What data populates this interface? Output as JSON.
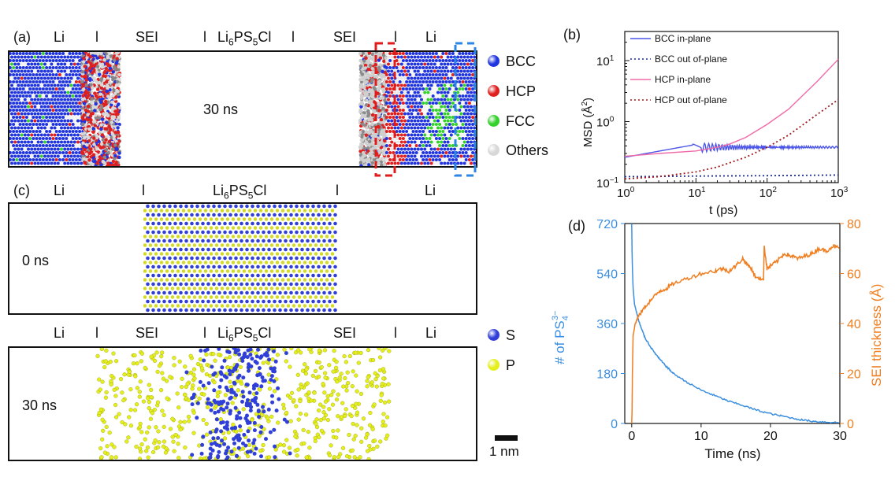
{
  "colors": {
    "bcc": "#2035e0",
    "hcp": "#e01f1f",
    "fcc": "#34d02b",
    "others": "#d8d8d8",
    "s_atom": "#2f3fd8",
    "p_atom": "#e4ef1c",
    "sei_line": "#f07d1e",
    "ps4_line": "#3b8fe0",
    "hcp_curve": "#f06aa8",
    "hcp_dot": "#a0181c",
    "bcc_curve": "#4b55e8",
    "bcc_dot": "#1a2a9a",
    "red_dash": "#e11a1a",
    "blue_dash": "#2c86e6"
  },
  "panel_a": {
    "letter": "(a)",
    "header": {
      "li_left": "Li",
      "sep1": "l",
      "sei_left": "SEI",
      "sep2": "l",
      "lipsc_main": "Li",
      "lipsc_sub1": "6",
      "lipsc_mid": "PS",
      "lipsc_sub2": "5",
      "lipsc_end": "Cl",
      "sep3": "l",
      "sei_right": "SEI",
      "sep4": "l",
      "li_right": "Li"
    },
    "time": "30 ns",
    "legend": [
      {
        "name": "BCC",
        "color": "#2035e0"
      },
      {
        "name": "HCP",
        "color": "#e01f1f"
      },
      {
        "name": "FCC",
        "color": "#34d02b"
      },
      {
        "name": "Others",
        "color": "#d8d8d8"
      }
    ]
  },
  "panel_c": {
    "letter": "(c)",
    "header_top": {
      "li_left": "Li",
      "sep1": "l",
      "lipsc_main": "Li",
      "lipsc_sub1": "6",
      "lipsc_mid": "PS",
      "lipsc_sub2": "5",
      "lipsc_end": "Cl",
      "sep2": "l",
      "li_right": "Li"
    },
    "time_top": "0 ns",
    "header_bottom": {
      "li_left": "Li",
      "sep1": "l",
      "sei_left": "SEI",
      "sep2": "l",
      "lipsc_main": "Li",
      "lipsc_sub1": "6",
      "lipsc_mid": "PS",
      "lipsc_sub2": "5",
      "lipsc_end": "Cl",
      "sei_right": "SEI",
      "sep3": "l",
      "li_right": "Li"
    },
    "time_bottom": "30 ns",
    "legend": [
      {
        "name": "S",
        "color": "#2f3fd8"
      },
      {
        "name": "P",
        "color": "#e4ef1c"
      }
    ],
    "scale_bar": "1 nm"
  },
  "chart_data": [
    {
      "panel": "(b)",
      "type": "line",
      "xscale": "log",
      "yscale": "log",
      "xlabel": "t (ps)",
      "ylabel_main": "MSD (Å",
      "ylabel_sup": "2",
      "ylabel_end": ")",
      "xlim": [
        1,
        1000
      ],
      "ylim": [
        0.1,
        30
      ],
      "xticks": [
        {
          "v": 1,
          "base": "10",
          "exp": "0"
        },
        {
          "v": 10,
          "base": "10",
          "exp": "1"
        },
        {
          "v": 100,
          "base": "10",
          "exp": "2"
        },
        {
          "v": 1000,
          "base": "10",
          "exp": "3"
        }
      ],
      "yticks": [
        {
          "v": 0.1,
          "base": "10",
          "exp": "−1"
        },
        {
          "v": 1,
          "base": "10",
          "exp": "0"
        },
        {
          "v": 10,
          "base": "10",
          "exp": "1"
        }
      ],
      "legend_position": "top-left",
      "series": [
        {
          "name": "BCC in-plane",
          "style": "solid",
          "color": "#4b55e8",
          "x": [
            1,
            2,
            4,
            6,
            8,
            9,
            10,
            13,
            16,
            20,
            25,
            30,
            40,
            50,
            70,
            100,
            200,
            500,
            1000
          ],
          "y": [
            0.26,
            0.29,
            0.34,
            0.38,
            0.42,
            0.43,
            0.42,
            0.34,
            0.42,
            0.33,
            0.41,
            0.34,
            0.39,
            0.36,
            0.38,
            0.37,
            0.38,
            0.38,
            0.38
          ]
        },
        {
          "name": "BCC out of-plane",
          "style": "dotted",
          "color": "#1a2a9a",
          "x": [
            1,
            10,
            100,
            1000
          ],
          "y": [
            0.125,
            0.128,
            0.13,
            0.133
          ]
        },
        {
          "name": "HCP in-plane",
          "style": "solid",
          "color": "#f06aa8",
          "x": [
            1,
            3,
            10,
            20,
            30,
            50,
            100,
            200,
            500,
            1000
          ],
          "y": [
            0.27,
            0.3,
            0.33,
            0.38,
            0.43,
            0.55,
            0.9,
            1.6,
            4.5,
            10.5
          ]
        },
        {
          "name": "HCP out of-plane",
          "style": "dotted",
          "color": "#a0181c",
          "x": [
            1,
            3,
            10,
            20,
            50,
            100,
            200,
            500,
            1000
          ],
          "y": [
            0.115,
            0.125,
            0.15,
            0.18,
            0.26,
            0.38,
            0.6,
            1.3,
            2.3
          ]
        }
      ]
    },
    {
      "panel": "(d)",
      "type": "line",
      "xlabel": "Time (ns)",
      "ylabel_left_main": "# of PS",
      "ylabel_left_sub": "4",
      "ylabel_left_sup": "3−",
      "ylabel_right": "SEI thickness (Å)",
      "xlim": [
        -1,
        30
      ],
      "ylim_left": [
        0,
        720
      ],
      "ylim_right": [
        0,
        80
      ],
      "xticks": [
        0,
        10,
        20,
        30
      ],
      "yticks_left": [
        0,
        180,
        360,
        540,
        720
      ],
      "yticks_right": [
        0,
        20,
        40,
        60,
        80
      ],
      "series": [
        {
          "name": "# of PS4 3-",
          "axis": "left",
          "color": "#3b8fe0",
          "x": [
            0,
            0.05,
            0.1,
            0.2,
            0.4,
            0.7,
            1,
            1.5,
            2,
            3,
            4,
            5,
            6,
            8,
            10,
            12,
            14,
            16,
            18,
            20,
            22,
            24,
            26,
            28,
            30
          ],
          "y": [
            720,
            620,
            560,
            490,
            430,
            400,
            370,
            335,
            305,
            265,
            232,
            205,
            180,
            148,
            120,
            100,
            80,
            65,
            48,
            35,
            25,
            15,
            8,
            5,
            3
          ]
        },
        {
          "name": "SEI thickness",
          "axis": "right",
          "color": "#f07d1e",
          "x": [
            0,
            0.05,
            0.1,
            0.2,
            0.5,
            1,
            2,
            3,
            4,
            5,
            6,
            8,
            10,
            12,
            13,
            14,
            15,
            16,
            16.5,
            17,
            18,
            19,
            19.1,
            19.5,
            20,
            21,
            22,
            23,
            24,
            25,
            26,
            27,
            28,
            29,
            30
          ],
          "y": [
            0,
            5,
            20,
            35,
            40,
            43,
            47,
            50,
            53,
            54,
            56,
            58,
            60,
            61,
            62,
            61,
            63,
            66,
            64,
            63,
            58,
            58,
            71,
            62,
            63,
            65,
            68,
            67,
            66,
            67,
            68,
            70,
            69,
            71,
            70
          ]
        }
      ]
    }
  ]
}
